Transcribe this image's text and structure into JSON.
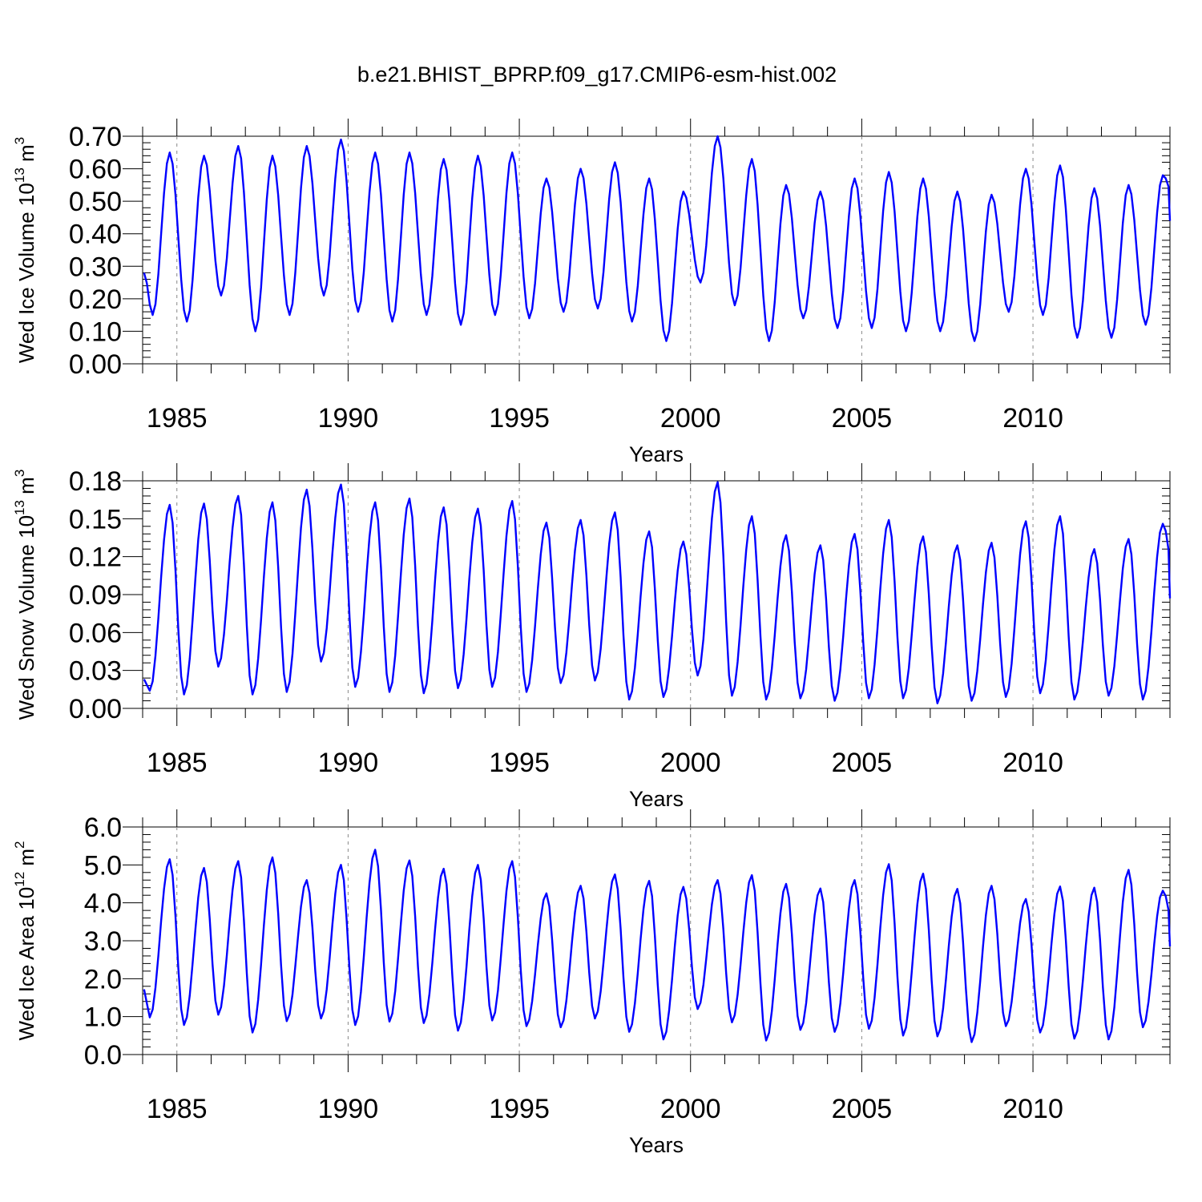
{
  "title": "b.e21.BHIST_BPRP.f09_g17.CMIP6-esm-hist.002",
  "colors": {
    "series": "#0000ff",
    "axis": "#000000",
    "refline": "#888888"
  },
  "chart_data": [
    {
      "type": "line",
      "ylabel": "Wed Ice Volume 10",
      "ylabel_exp": "13",
      "ylabel_unit": " m",
      "ylabel_unit_exp": "3",
      "xlabel": "Years",
      "ylim": [
        0,
        0.7
      ],
      "yticks": [
        0,
        0.1,
        0.2,
        0.3,
        0.4,
        0.5,
        0.6,
        0.7
      ],
      "ytick_labels": [
        "0.00",
        "0.10",
        "0.20",
        "0.30",
        "0.40",
        "0.50",
        "0.60",
        "0.70"
      ],
      "xlim": [
        1984,
        2014
      ],
      "xticks": [
        1985,
        1990,
        1995,
        2000,
        2005,
        2010
      ],
      "xtick_labels": [
        "1985",
        "1990",
        "1995",
        "2000",
        "2005",
        "2010"
      ],
      "ref_lines": [
        1985,
        1990,
        1995,
        2000,
        2005,
        2010
      ],
      "series": [
        {
          "name": "Wed Ice Volume",
          "start_year": 1984,
          "step": "monthly",
          "annual_peak_month": 9,
          "annual_min_month": 3,
          "annual_max": [
            0.65,
            0.64,
            0.67,
            0.64,
            0.67,
            0.69,
            0.65,
            0.65,
            0.63,
            0.64,
            0.65,
            0.57,
            0.6,
            0.62,
            0.57,
            0.53,
            0.7,
            0.63,
            0.55,
            0.53,
            0.57,
            0.59,
            0.57,
            0.53,
            0.52,
            0.6,
            0.61,
            0.54,
            0.55,
            0.58
          ],
          "annual_min": [
            0.15,
            0.13,
            0.21,
            0.1,
            0.15,
            0.21,
            0.16,
            0.13,
            0.15,
            0.12,
            0.15,
            0.14,
            0.16,
            0.17,
            0.13,
            0.07,
            0.25,
            0.18,
            0.07,
            0.14,
            0.11,
            0.11,
            0.1,
            0.1,
            0.07,
            0.16,
            0.15,
            0.08,
            0.08,
            0.12
          ],
          "first_value": 0.28,
          "last_value": 0.44
        }
      ]
    },
    {
      "type": "line",
      "ylabel": "Wed Snow Volume 10",
      "ylabel_exp": "13",
      "ylabel_unit": " m",
      "ylabel_unit_exp": "3",
      "xlabel": "Years",
      "ylim": [
        0,
        0.18
      ],
      "yticks": [
        0,
        0.03,
        0.06,
        0.09,
        0.12,
        0.15,
        0.18
      ],
      "ytick_labels": [
        "0.00",
        "0.03",
        "0.06",
        "0.09",
        "0.12",
        "0.15",
        "0.18"
      ],
      "xlim": [
        1984,
        2014
      ],
      "xticks": [
        1985,
        1990,
        1995,
        2000,
        2005,
        2010
      ],
      "xtick_labels": [
        "1985",
        "1990",
        "1995",
        "2000",
        "2005",
        "2010"
      ],
      "ref_lines": [
        1985,
        1990,
        1995,
        2000,
        2005,
        2010
      ],
      "series": [
        {
          "name": "Wed Snow Volume",
          "start_year": 1984,
          "step": "monthly",
          "annual_peak_month": 9,
          "annual_min_month": 2,
          "annual_max": [
            0.161,
            0.162,
            0.168,
            0.163,
            0.173,
            0.177,
            0.163,
            0.166,
            0.159,
            0.158,
            0.164,
            0.147,
            0.149,
            0.155,
            0.14,
            0.132,
            0.179,
            0.152,
            0.137,
            0.129,
            0.138,
            0.149,
            0.136,
            0.129,
            0.131,
            0.148,
            0.152,
            0.126,
            0.134,
            0.146
          ],
          "annual_min": [
            0.014,
            0.011,
            0.033,
            0.011,
            0.013,
            0.037,
            0.017,
            0.013,
            0.012,
            0.016,
            0.017,
            0.013,
            0.02,
            0.022,
            0.007,
            0.009,
            0.026,
            0.01,
            0.007,
            0.008,
            0.006,
            0.008,
            0.008,
            0.004,
            0.006,
            0.009,
            0.012,
            0.007,
            0.01,
            0.007
          ],
          "first_value": 0.023,
          "last_value": 0.087
        }
      ]
    },
    {
      "type": "line",
      "ylabel": "Wed Ice Area 10",
      "ylabel_exp": "12",
      "ylabel_unit": " m",
      "ylabel_unit_exp": "2",
      "xlabel": "Years",
      "ylim": [
        0,
        6
      ],
      "yticks": [
        0,
        1,
        2,
        3,
        4,
        5,
        6
      ],
      "ytick_labels": [
        "0.0",
        "1.0",
        "2.0",
        "3.0",
        "4.0",
        "5.0",
        "6.0"
      ],
      "xlim": [
        1984,
        2014
      ],
      "xticks": [
        1985,
        1990,
        1995,
        2000,
        2005,
        2010
      ],
      "xtick_labels": [
        "1985",
        "1990",
        "1995",
        "2000",
        "2005",
        "2010"
      ],
      "ref_lines": [
        1985,
        1990,
        1995,
        2000,
        2005,
        2010
      ],
      "series": [
        {
          "name": "Wed Ice Area",
          "start_year": 1984,
          "step": "monthly",
          "annual_peak_month": 9,
          "annual_min_month": 2,
          "annual_max": [
            5.15,
            4.92,
            5.1,
            5.2,
            4.6,
            5.0,
            5.4,
            5.12,
            4.9,
            5.0,
            5.1,
            4.25,
            4.45,
            4.75,
            4.58,
            4.42,
            4.6,
            4.73,
            4.5,
            4.38,
            4.6,
            5.02,
            4.77,
            4.37,
            4.45,
            4.1,
            4.43,
            4.4,
            4.87,
            4.32
          ],
          "annual_min": [
            0.98,
            0.78,
            1.05,
            0.58,
            0.88,
            0.95,
            0.78,
            0.87,
            0.83,
            0.63,
            0.9,
            0.75,
            0.72,
            0.95,
            0.6,
            0.4,
            1.2,
            0.85,
            0.37,
            0.65,
            0.6,
            0.68,
            0.5,
            0.48,
            0.33,
            0.75,
            0.58,
            0.42,
            0.4,
            0.72
          ],
          "first_value": 1.72,
          "last_value": 2.85
        }
      ]
    }
  ]
}
